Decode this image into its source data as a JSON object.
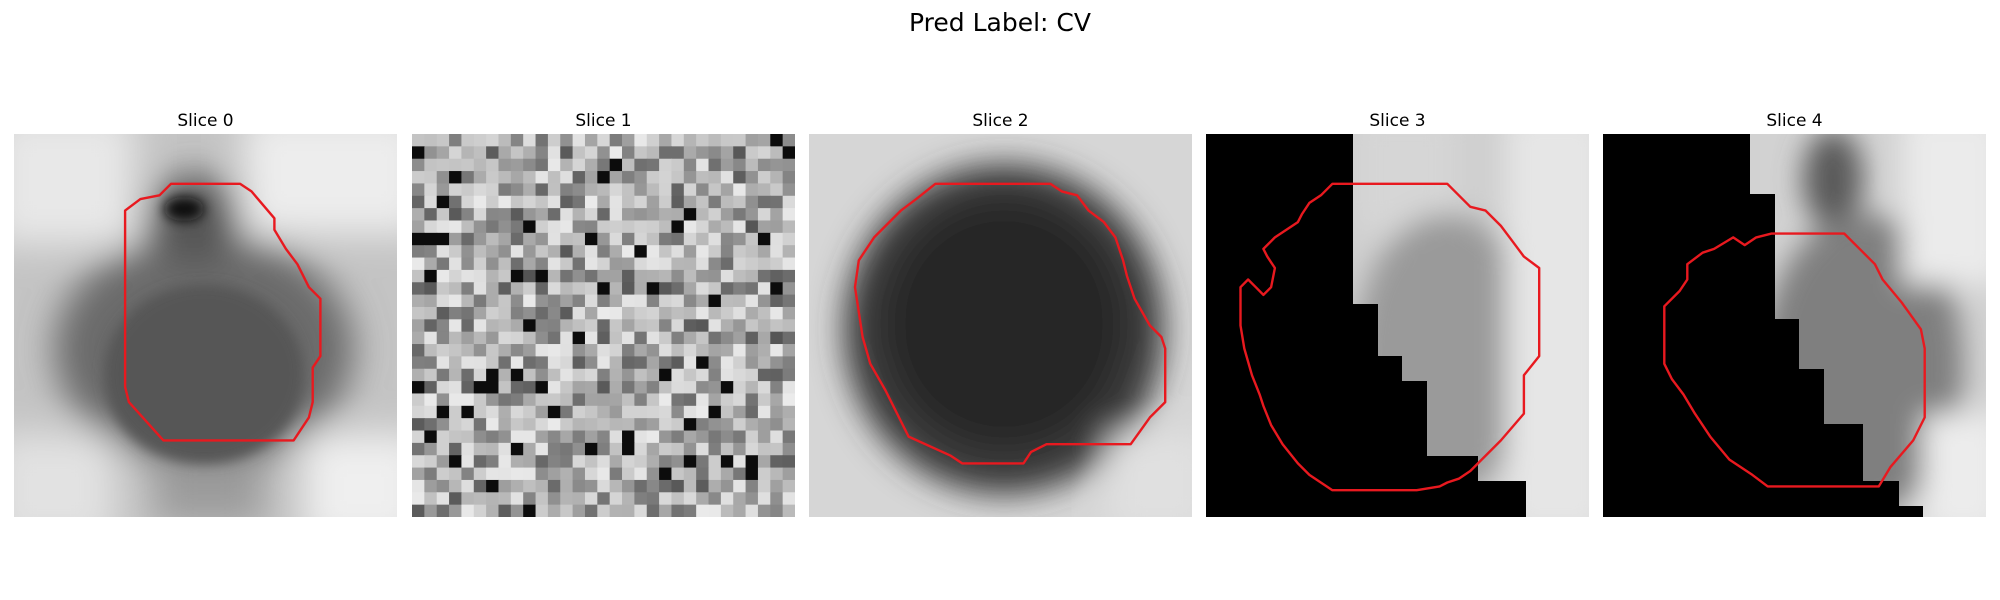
{
  "figure": {
    "title": "Pred Label: CV",
    "panels": [
      {
        "title": "Slice 0",
        "image": "blurred grayscale patch, dark rounded blob with a darker spot at the top",
        "contour_color": "#e8191f",
        "contour": [
          [
            0.29,
            0.2
          ],
          [
            0.33,
            0.17
          ],
          [
            0.38,
            0.16
          ],
          [
            0.41,
            0.13
          ],
          [
            0.59,
            0.13
          ],
          [
            0.62,
            0.15
          ],
          [
            0.68,
            0.22
          ],
          [
            0.68,
            0.25
          ],
          [
            0.71,
            0.3
          ],
          [
            0.74,
            0.34
          ],
          [
            0.77,
            0.4
          ],
          [
            0.8,
            0.43
          ],
          [
            0.8,
            0.58
          ],
          [
            0.78,
            0.61
          ],
          [
            0.78,
            0.7
          ],
          [
            0.77,
            0.74
          ],
          [
            0.73,
            0.8
          ],
          [
            0.39,
            0.8
          ],
          [
            0.3,
            0.7
          ],
          [
            0.29,
            0.66
          ]
        ]
      },
      {
        "title": "Slice 1",
        "image": "high-contrast noisy grayscale texture",
        "contour": []
      },
      {
        "title": "Slice 2",
        "image": "large dark round blob on light background",
        "contour_color": "#e8191f",
        "contour": [
          [
            0.33,
            0.13
          ],
          [
            0.63,
            0.13
          ],
          [
            0.66,
            0.15
          ],
          [
            0.7,
            0.16
          ],
          [
            0.73,
            0.2
          ],
          [
            0.77,
            0.23
          ],
          [
            0.8,
            0.27
          ],
          [
            0.82,
            0.33
          ],
          [
            0.83,
            0.37
          ],
          [
            0.85,
            0.43
          ],
          [
            0.89,
            0.5
          ],
          [
            0.92,
            0.53
          ],
          [
            0.93,
            0.56
          ],
          [
            0.93,
            0.7
          ],
          [
            0.89,
            0.74
          ],
          [
            0.84,
            0.81
          ],
          [
            0.62,
            0.81
          ],
          [
            0.58,
            0.83
          ],
          [
            0.56,
            0.86
          ],
          [
            0.4,
            0.86
          ],
          [
            0.37,
            0.84
          ],
          [
            0.26,
            0.79
          ],
          [
            0.23,
            0.73
          ],
          [
            0.2,
            0.67
          ],
          [
            0.16,
            0.6
          ],
          [
            0.14,
            0.53
          ],
          [
            0.12,
            0.4
          ],
          [
            0.13,
            0.33
          ],
          [
            0.17,
            0.27
          ],
          [
            0.24,
            0.2
          ],
          [
            0.28,
            0.17
          ]
        ]
      },
      {
        "title": "Slice 3",
        "image": "grayscale patch with black masked region on the left and bottom",
        "contour_color": "#e8191f",
        "contour": [
          [
            0.25,
            0.21
          ],
          [
            0.27,
            0.18
          ],
          [
            0.3,
            0.16
          ],
          [
            0.33,
            0.13
          ],
          [
            0.63,
            0.13
          ],
          [
            0.66,
            0.16
          ],
          [
            0.69,
            0.19
          ],
          [
            0.73,
            0.2
          ],
          [
            0.77,
            0.24
          ],
          [
            0.8,
            0.28
          ],
          [
            0.83,
            0.32
          ],
          [
            0.87,
            0.35
          ],
          [
            0.87,
            0.58
          ],
          [
            0.83,
            0.63
          ],
          [
            0.83,
            0.73
          ],
          [
            0.77,
            0.8
          ],
          [
            0.69,
            0.88
          ],
          [
            0.66,
            0.9
          ],
          [
            0.63,
            0.91
          ],
          [
            0.61,
            0.92
          ],
          [
            0.55,
            0.93
          ],
          [
            0.33,
            0.93
          ],
          [
            0.27,
            0.89
          ],
          [
            0.24,
            0.86
          ],
          [
            0.2,
            0.81
          ],
          [
            0.17,
            0.76
          ],
          [
            0.15,
            0.71
          ],
          [
            0.14,
            0.68
          ],
          [
            0.12,
            0.63
          ],
          [
            0.1,
            0.56
          ],
          [
            0.09,
            0.5
          ],
          [
            0.09,
            0.4
          ],
          [
            0.11,
            0.38
          ],
          [
            0.13,
            0.4
          ],
          [
            0.15,
            0.42
          ],
          [
            0.17,
            0.4
          ],
          [
            0.18,
            0.35
          ],
          [
            0.16,
            0.32
          ],
          [
            0.15,
            0.3
          ],
          [
            0.18,
            0.27
          ],
          [
            0.21,
            0.25
          ],
          [
            0.24,
            0.23
          ]
        ]
      },
      {
        "title": "Slice 4",
        "image": "grayscale patch with black masked region on the left and bottom",
        "contour_color": "#e8191f",
        "contour": [
          [
            0.34,
            0.27
          ],
          [
            0.37,
            0.29
          ],
          [
            0.4,
            0.27
          ],
          [
            0.44,
            0.26
          ],
          [
            0.63,
            0.26
          ],
          [
            0.68,
            0.31
          ],
          [
            0.71,
            0.34
          ],
          [
            0.73,
            0.38
          ],
          [
            0.78,
            0.44
          ],
          [
            0.83,
            0.51
          ],
          [
            0.84,
            0.56
          ],
          [
            0.84,
            0.74
          ],
          [
            0.81,
            0.8
          ],
          [
            0.75,
            0.87
          ],
          [
            0.72,
            0.92
          ],
          [
            0.43,
            0.92
          ],
          [
            0.39,
            0.89
          ],
          [
            0.33,
            0.85
          ],
          [
            0.28,
            0.79
          ],
          [
            0.24,
            0.73
          ],
          [
            0.21,
            0.68
          ],
          [
            0.18,
            0.64
          ],
          [
            0.16,
            0.6
          ],
          [
            0.16,
            0.45
          ],
          [
            0.2,
            0.41
          ],
          [
            0.22,
            0.38
          ],
          [
            0.22,
            0.34
          ],
          [
            0.26,
            0.31
          ],
          [
            0.29,
            0.3
          ]
        ]
      }
    ]
  }
}
